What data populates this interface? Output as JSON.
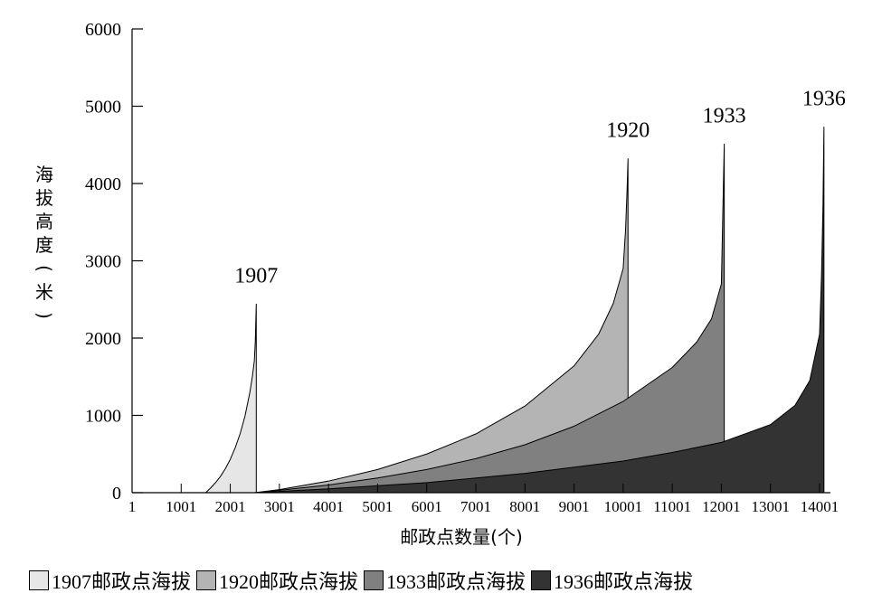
{
  "chart_data": {
    "type": "area",
    "xlabel": "邮政点数量(个)",
    "ylabel": "海拔高度(米)",
    "ylim": [
      0,
      6000
    ],
    "yticks": [
      "0",
      "1000",
      "2000",
      "3000",
      "4000",
      "5000",
      "6000"
    ],
    "xticks": [
      "1",
      "1001",
      "2001",
      "3001",
      "4001",
      "5001",
      "6001",
      "7001",
      "8001",
      "9001",
      "10001",
      "11001",
      "12001",
      "13001",
      "14001"
    ],
    "xtick_values": [
      1,
      1001,
      2001,
      3001,
      4001,
      5001,
      6001,
      7001,
      8001,
      9001,
      10001,
      11001,
      12001,
      13001,
      14001
    ],
    "legend_position": "bottom",
    "series": [
      {
        "name": "1907邮政点海拔",
        "label": "1907",
        "color": "#e6e6e6",
        "x": [
          1500,
          1600,
          1700,
          1800,
          1900,
          2000,
          2100,
          2200,
          2300,
          2400,
          2450,
          2490,
          2510,
          2520,
          2530
        ],
        "y": [
          0,
          60,
          130,
          210,
          310,
          430,
          580,
          760,
          990,
          1300,
          1500,
          1700,
          1950,
          2200,
          2440
        ],
        "peak_x": 2530,
        "end_x": 2530,
        "end_y": 0
      },
      {
        "name": "1920邮政点海拔",
        "label": "1920",
        "color": "#b4b4b4",
        "x": [
          2501,
          3001,
          4001,
          5001,
          6001,
          7001,
          8001,
          9001,
          9501,
          9801,
          10001,
          10050,
          10080,
          10100
        ],
        "y": [
          0,
          40,
          150,
          300,
          500,
          760,
          1120,
          1640,
          2050,
          2450,
          2900,
          3400,
          3900,
          4320
        ],
        "peak_x": 10100,
        "end_x": 10100,
        "end_y": 690
      },
      {
        "name": "1933邮政点海拔",
        "label": "1933",
        "color": "#808080",
        "x": [
          2501,
          3001,
          4001,
          5001,
          6001,
          7001,
          8001,
          9001,
          10001,
          11001,
          11501,
          11801,
          12001,
          12030,
          12060
        ],
        "y": [
          0,
          30,
          100,
          190,
          300,
          440,
          620,
          860,
          1180,
          1620,
          1950,
          2250,
          2700,
          3600,
          4510
        ],
        "peak_x": 12060,
        "end_x": 12060,
        "end_y": 570
      },
      {
        "name": "1936邮政点海拔",
        "label": "1936",
        "color": "#333333",
        "x": [
          2501,
          4001,
          6001,
          8001,
          10001,
          11001,
          12001,
          13001,
          13501,
          13801,
          14001,
          14040,
          14070,
          14090
        ],
        "y": [
          0,
          50,
          130,
          250,
          410,
          520,
          650,
          880,
          1130,
          1450,
          2050,
          2800,
          3700,
          4730
        ],
        "peak_x": 14090,
        "end_x": 14090,
        "end_y": 0
      }
    ]
  }
}
